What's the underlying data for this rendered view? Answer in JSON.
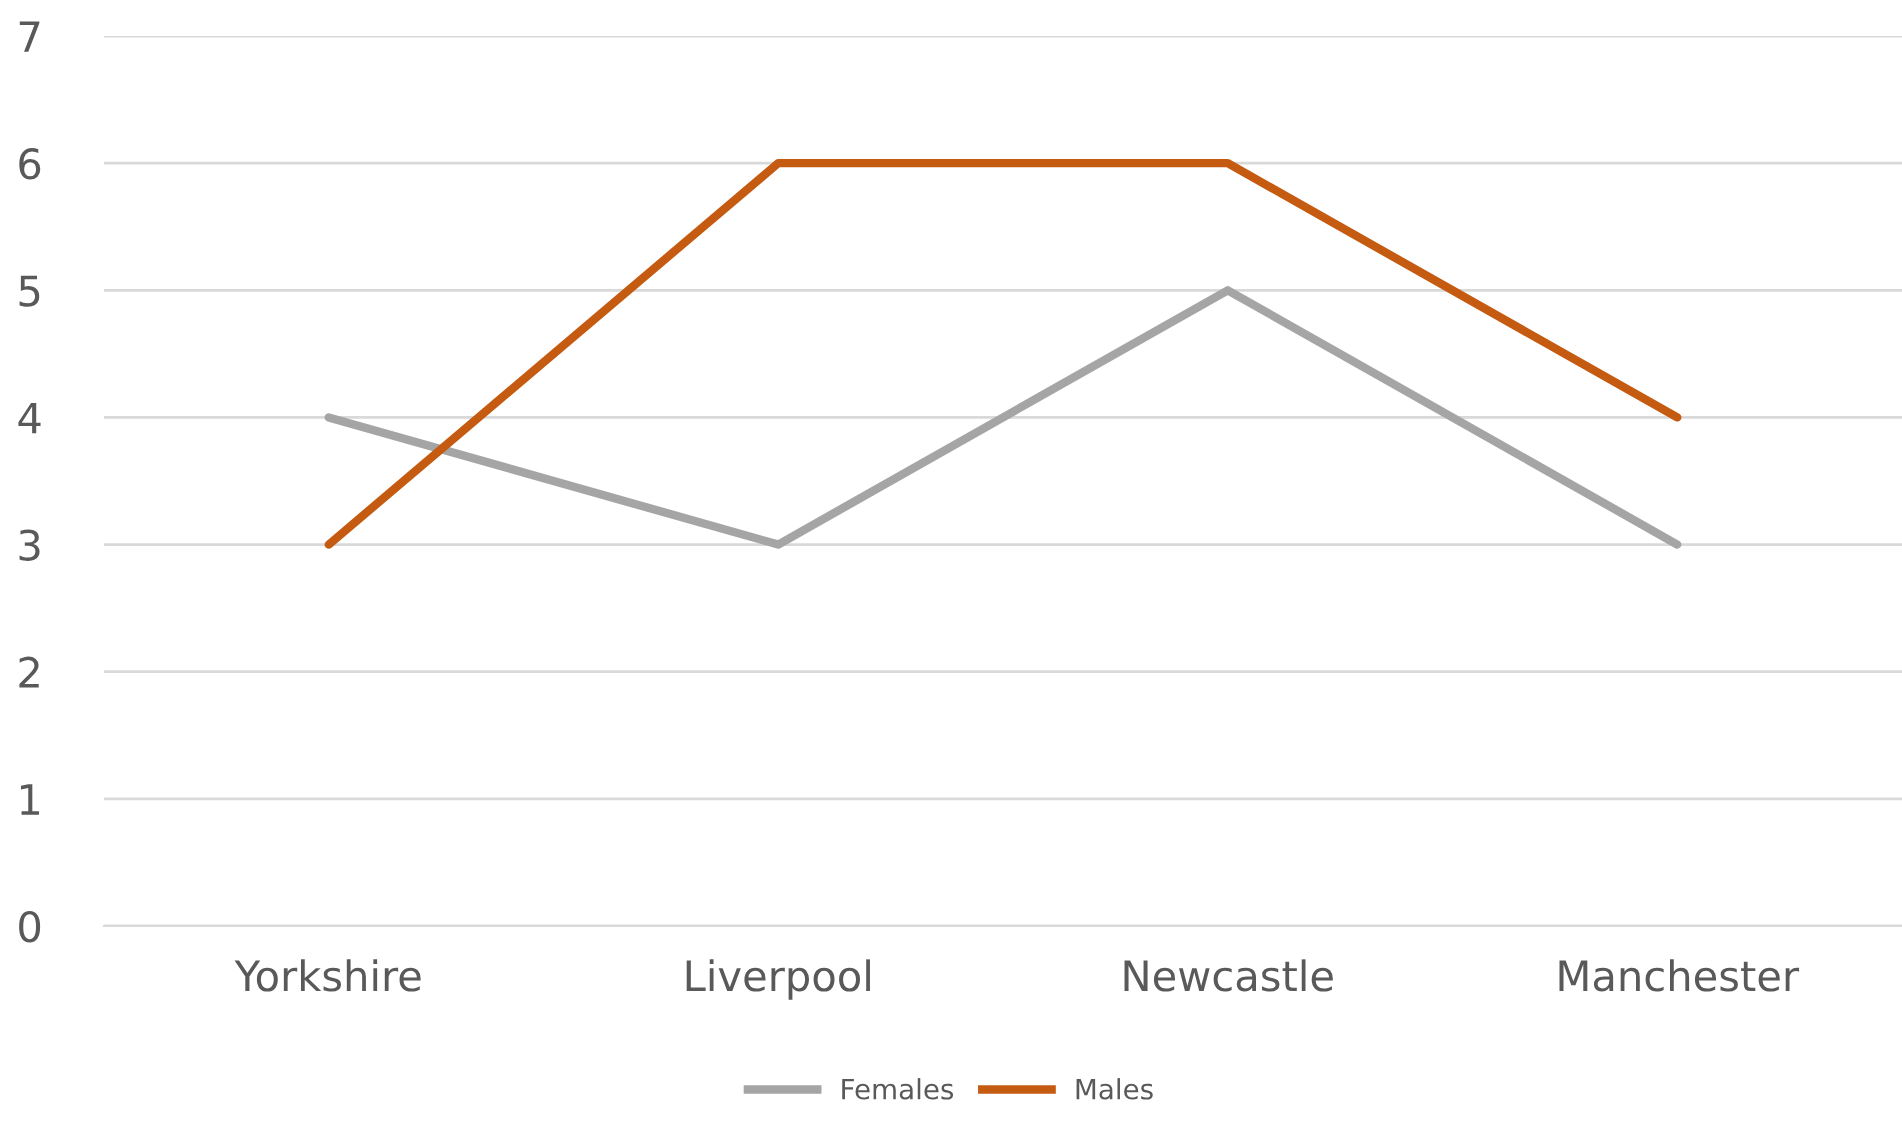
{
  "chart_data": {
    "type": "line",
    "categories": [
      "Yorkshire",
      "Liverpool",
      "Newcastle",
      "Manchester"
    ],
    "series": [
      {
        "name": "Females",
        "color": "#a5a5a5",
        "values": [
          4,
          3,
          5,
          3
        ]
      },
      {
        "name": "Males",
        "color": "#c55a11",
        "values": [
          3,
          6,
          6,
          4
        ]
      }
    ],
    "ylim": [
      0,
      7
    ],
    "yticks": [
      0,
      1,
      2,
      3,
      4,
      5,
      6,
      7
    ],
    "grid": "y",
    "legend": "bottom",
    "marker": "none",
    "line_style": "solid"
  }
}
